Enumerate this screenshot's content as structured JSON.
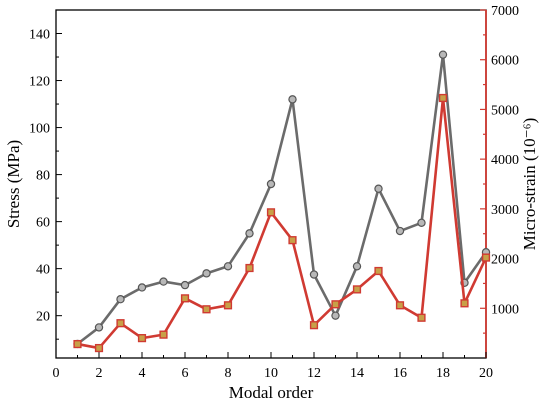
{
  "chart_data": {
    "type": "line",
    "xlabel": "Modal order",
    "ylabel": "Stress (MPa)",
    "y2label": "Micro-strain (10⁻⁶)",
    "xlim": [
      0,
      20
    ],
    "ylim": [
      2,
      150
    ],
    "y2lim": [
      0,
      7000
    ],
    "xticks": [
      "0",
      "2",
      "4",
      "6",
      "8",
      "10",
      "12",
      "14",
      "16",
      "18",
      "20"
    ],
    "yticks": [
      "20",
      "40",
      "60",
      "80",
      "100",
      "120",
      "140"
    ],
    "y2ticks": [
      "1000",
      "2000",
      "3000",
      "4000",
      "5000",
      "6000",
      "7000"
    ],
    "x": [
      1,
      2,
      3,
      4,
      5,
      6,
      7,
      8,
      9,
      10,
      11,
      12,
      13,
      14,
      15,
      16,
      17,
      18,
      19,
      20
    ],
    "series": [
      {
        "axis": "left",
        "color": "#6b6b6b",
        "marker": "circle",
        "values": [
          8,
          15,
          27,
          32,
          34.5,
          33,
          38,
          41,
          55,
          76,
          112,
          37.5,
          20,
          41,
          74,
          56,
          59.5,
          131,
          34,
          47
        ]
      },
      {
        "axis": "right",
        "color": "#d03a32",
        "marker": "square",
        "values": [
          280,
          200,
          700,
          400,
          470,
          1200,
          980,
          1060,
          1810,
          2930,
          2370,
          660,
          1080,
          1380,
          1750,
          1060,
          810,
          5230,
          1100,
          2020
        ]
      }
    ],
    "grid": false
  }
}
